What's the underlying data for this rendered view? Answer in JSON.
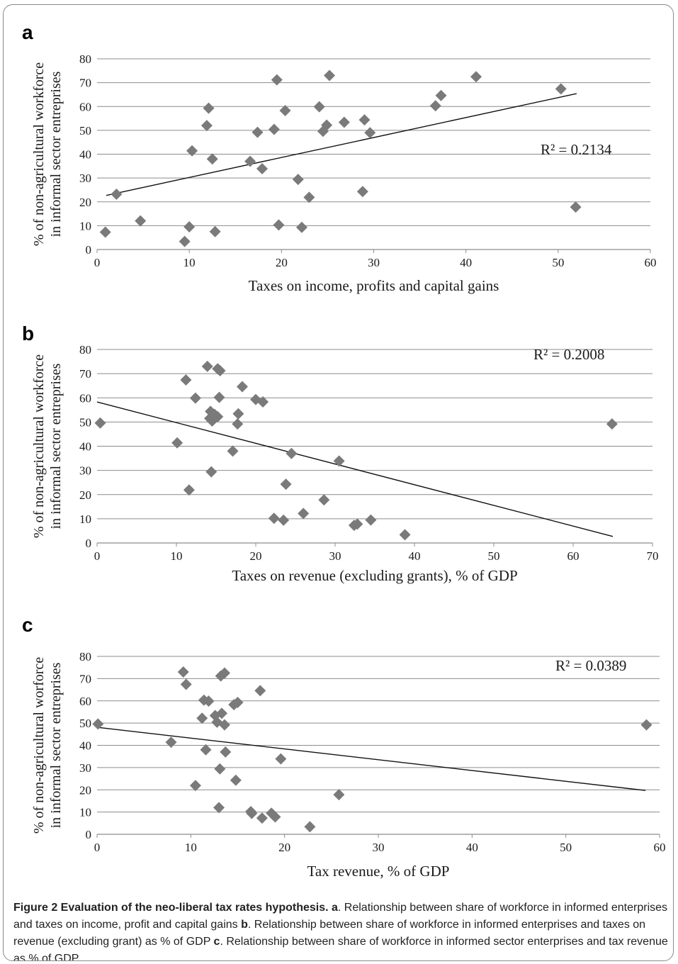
{
  "caption": {
    "lead": "Figure 2 Evaluation of the neo-liberal tax rates hypothesis.",
    "a_letter": "a",
    "a_text": ". Relationship between share of workforce in informed enterprises and taxes on income, profit and capital gains",
    "b_letter": "b",
    "b_text": ". Relationship between share of workforce in informed enterprises and taxes on revenue (excluding grant) as % of GDP",
    "c_letter": "c",
    "c_text": ". Relationship between share of workforce in informed sector enterprises and tax revenue as % of GDP."
  },
  "chart_data": [
    {
      "panel": "a",
      "type": "scatter",
      "xlabel": "Taxes on income, profits and capital gains",
      "ylabel": [
        "% of non-agricultural workforce",
        "in informal sector entreprises"
      ],
      "xlim": [
        0,
        60
      ],
      "ylim": [
        0,
        80
      ],
      "xticks": [
        "0",
        "10",
        "20",
        "30",
        "40",
        "50",
        "60"
      ],
      "yticks": [
        "0",
        "10",
        "20",
        "30",
        "40",
        "50",
        "60",
        "70",
        "80"
      ],
      "grid": "horizontal",
      "marker_color": "#7a7a7a",
      "points": [
        [
          0.9,
          7.3
        ],
        [
          2.1,
          23.2
        ],
        [
          4.7,
          12.0
        ],
        [
          9.5,
          3.4
        ],
        [
          10.0,
          9.5
        ],
        [
          10.3,
          41.4
        ],
        [
          11.9,
          52.0
        ],
        [
          12.1,
          59.3
        ],
        [
          12.5,
          38.0
        ],
        [
          12.8,
          7.5
        ],
        [
          16.6,
          37.0
        ],
        [
          17.4,
          49.2
        ],
        [
          17.9,
          33.9
        ],
        [
          19.2,
          50.4
        ],
        [
          19.5,
          71.2
        ],
        [
          19.7,
          10.3
        ],
        [
          20.4,
          58.3
        ],
        [
          21.8,
          29.4
        ],
        [
          22.2,
          9.3
        ],
        [
          23.0,
          21.9
        ],
        [
          24.1,
          59.9
        ],
        [
          24.5,
          49.6
        ],
        [
          24.9,
          52.2
        ],
        [
          25.2,
          73.0
        ],
        [
          26.8,
          53.4
        ],
        [
          28.8,
          24.3
        ],
        [
          29.0,
          54.4
        ],
        [
          29.6,
          49.0
        ],
        [
          36.7,
          60.3
        ],
        [
          37.3,
          64.6
        ],
        [
          41.1,
          72.5
        ],
        [
          50.3,
          67.4
        ],
        [
          51.9,
          17.8
        ]
      ],
      "trendline": [
        [
          1.0,
          22.7
        ],
        [
          52.0,
          65.4
        ]
      ],
      "annotation": "R² = 0.2134"
    },
    {
      "panel": "b",
      "type": "scatter",
      "xlabel": "Taxes on revenue (excluding grants), % of GDP",
      "ylabel": [
        "% of non-agricultural workforce",
        "in informal sector entreprises"
      ],
      "xlim": [
        0,
        70
      ],
      "ylim": [
        0,
        80
      ],
      "xticks": [
        "0",
        "10",
        "20",
        "30",
        "40",
        "50",
        "60",
        "70"
      ],
      "yticks": [
        "0",
        "10",
        "20",
        "30",
        "40",
        "50",
        "60",
        "70",
        "80"
      ],
      "grid": "horizontal",
      "marker_color": "#7a7a7a",
      "points": [
        [
          0.4,
          49.6
        ],
        [
          10.1,
          41.4
        ],
        [
          11.2,
          67.4
        ],
        [
          11.6,
          21.9
        ],
        [
          12.4,
          59.9
        ],
        [
          13.9,
          73.0
        ],
        [
          14.2,
          51.5
        ],
        [
          14.3,
          54.4
        ],
        [
          14.4,
          29.4
        ],
        [
          14.5,
          50.4
        ],
        [
          14.8,
          53.2
        ],
        [
          15.2,
          52.2
        ],
        [
          15.2,
          72.0
        ],
        [
          15.4,
          60.2
        ],
        [
          15.5,
          71.2
        ],
        [
          17.1,
          38.0
        ],
        [
          17.7,
          49.2
        ],
        [
          17.8,
          53.4
        ],
        [
          18.3,
          64.6
        ],
        [
          20.0,
          59.3
        ],
        [
          20.9,
          58.3
        ],
        [
          22.3,
          10.2
        ],
        [
          23.5,
          9.4
        ],
        [
          23.8,
          24.3
        ],
        [
          24.5,
          37.0
        ],
        [
          26.0,
          12.2
        ],
        [
          28.6,
          17.8
        ],
        [
          30.5,
          33.9
        ],
        [
          32.4,
          7.3
        ],
        [
          32.8,
          7.8
        ],
        [
          34.5,
          9.5
        ],
        [
          38.8,
          3.4
        ],
        [
          64.9,
          49.2
        ]
      ],
      "trendline": [
        [
          0.0,
          58.3
        ],
        [
          65.0,
          2.7
        ]
      ],
      "annotation": "R² = 0.2008"
    },
    {
      "panel": "c",
      "type": "scatter",
      "xlabel": "Tax revenue, % of GDP",
      "ylabel": [
        "% of non-agricultural worforce",
        "in informal sector entreprises"
      ],
      "xlim": [
        0,
        60
      ],
      "ylim": [
        0,
        80
      ],
      "xticks": [
        "0",
        "10",
        "20",
        "30",
        "40",
        "50",
        "60"
      ],
      "yticks": [
        "0",
        "10",
        "20",
        "30",
        "40",
        "50",
        "60",
        "70",
        "80"
      ],
      "grid": "horizontal",
      "marker_color": "#7a7a7a",
      "points": [
        [
          0.1,
          49.6
        ],
        [
          7.9,
          41.4
        ],
        [
          9.2,
          73.0
        ],
        [
          9.5,
          67.4
        ],
        [
          10.5,
          21.9
        ],
        [
          11.2,
          52.2
        ],
        [
          11.4,
          60.3
        ],
        [
          11.6,
          38.0
        ],
        [
          11.9,
          59.9
        ],
        [
          12.6,
          53.4
        ],
        [
          12.8,
          50.4
        ],
        [
          13.0,
          12.0
        ],
        [
          13.1,
          29.4
        ],
        [
          13.2,
          71.2
        ],
        [
          13.3,
          54.4
        ],
        [
          13.6,
          72.5
        ],
        [
          13.6,
          49.2
        ],
        [
          13.7,
          37.0
        ],
        [
          14.6,
          58.3
        ],
        [
          14.8,
          24.3
        ],
        [
          15.0,
          59.3
        ],
        [
          16.4,
          10.2
        ],
        [
          16.5,
          9.4
        ],
        [
          17.4,
          64.6
        ],
        [
          17.6,
          7.3
        ],
        [
          18.6,
          9.5
        ],
        [
          19.0,
          7.8
        ],
        [
          19.6,
          33.9
        ],
        [
          22.7,
          3.4
        ],
        [
          25.8,
          17.8
        ],
        [
          58.6,
          49.2
        ]
      ],
      "trendline": [
        [
          0.0,
          48.1
        ],
        [
          58.5,
          19.7
        ]
      ],
      "annotation": "R² = 0.0389"
    }
  ]
}
